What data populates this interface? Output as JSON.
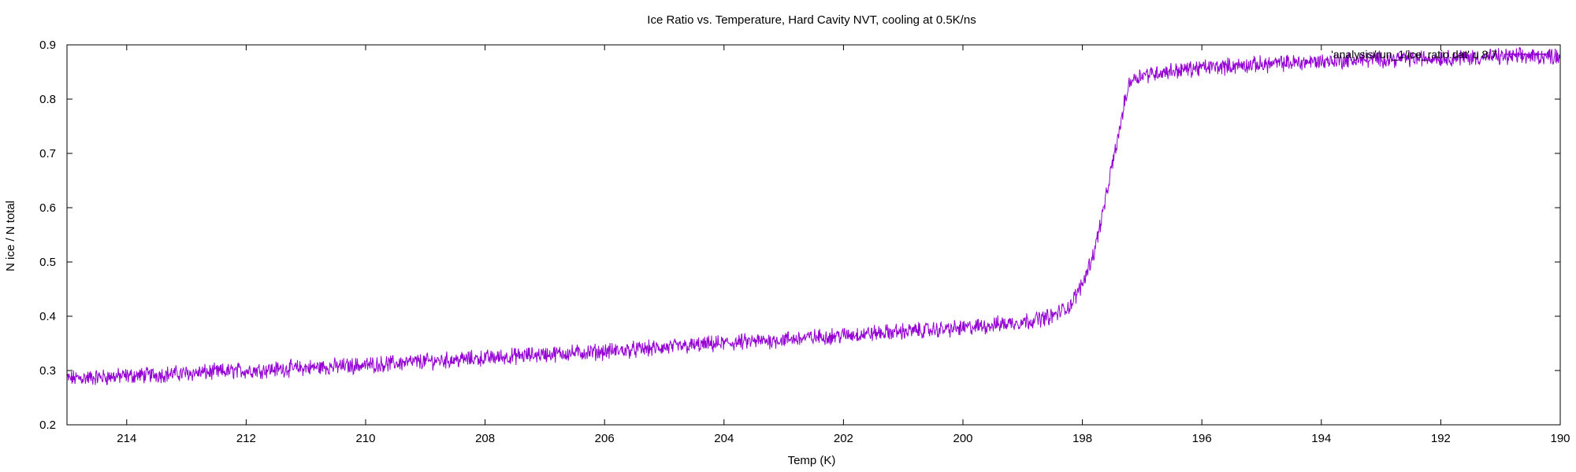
{
  "chart_data": {
    "type": "line",
    "title": "Ice Ratio vs. Temperature, Hard Cavity NVT, cooling at 0.5K/ns",
    "xlabel": "Temp (K)",
    "ylabel": "N ice / N total",
    "xlim": [
      215,
      190
    ],
    "ylim": [
      0.2,
      0.9
    ],
    "x_reversed": true,
    "x_ticks": [
      214,
      212,
      210,
      208,
      206,
      204,
      202,
      200,
      198,
      196,
      194,
      192,
      190
    ],
    "y_ticks": [
      0.2,
      0.3,
      0.4,
      0.5,
      0.6,
      0.7,
      0.8,
      0.9
    ],
    "grid": false,
    "legend_position": "top-right",
    "series": [
      {
        "name": "'analysis/run_1/ice_ratio.dat' u 8:7",
        "color": "#9400d3",
        "x": [
          215,
          214,
          213,
          212,
          211,
          210,
          209,
          208,
          207,
          206,
          205,
          204,
          203,
          202,
          201,
          200,
          199,
          198.5,
          198.2,
          198,
          197.8,
          197.6,
          197.5,
          197.4,
          197.3,
          197.2,
          197,
          196.5,
          196,
          195,
          194,
          193,
          192,
          191,
          190
        ],
        "y": [
          0.285,
          0.29,
          0.295,
          0.3,
          0.305,
          0.31,
          0.317,
          0.323,
          0.33,
          0.335,
          0.342,
          0.35,
          0.357,
          0.365,
          0.372,
          0.378,
          0.39,
          0.4,
          0.42,
          0.46,
          0.52,
          0.62,
          0.68,
          0.73,
          0.79,
          0.835,
          0.845,
          0.852,
          0.858,
          0.864,
          0.87,
          0.874,
          0.876,
          0.878,
          0.88
        ],
        "noise_amplitude": 0.012
      }
    ]
  }
}
